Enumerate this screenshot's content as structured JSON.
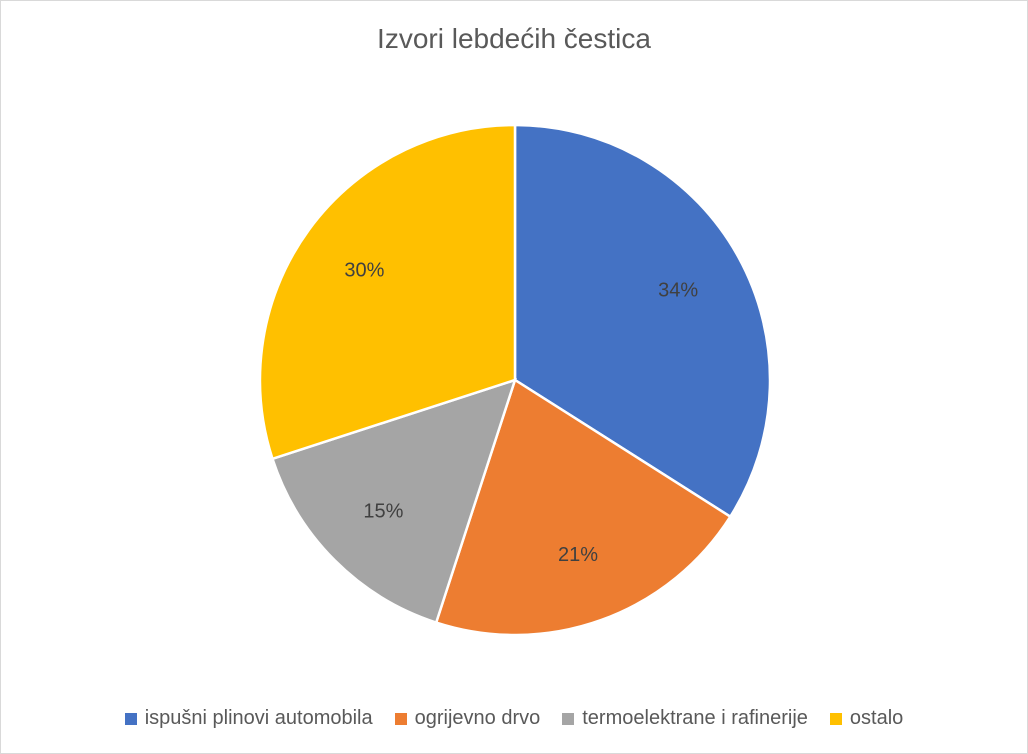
{
  "chart_data": {
    "type": "pie",
    "title": "Izvori lebdećih čestica",
    "categories": [
      "ispušni plinovi automobila",
      "ogrijevno drvo",
      "termoelektrane i rafinerije",
      "ostalo"
    ],
    "values": [
      34,
      21,
      15,
      30
    ],
    "data_labels": [
      "34%",
      "21%",
      "15%",
      "30%"
    ],
    "colors": [
      "#4472C4",
      "#ED7D31",
      "#A5A5A5",
      "#FFC000"
    ],
    "legend_position": "bottom",
    "start_angle": "top, clockwise"
  }
}
